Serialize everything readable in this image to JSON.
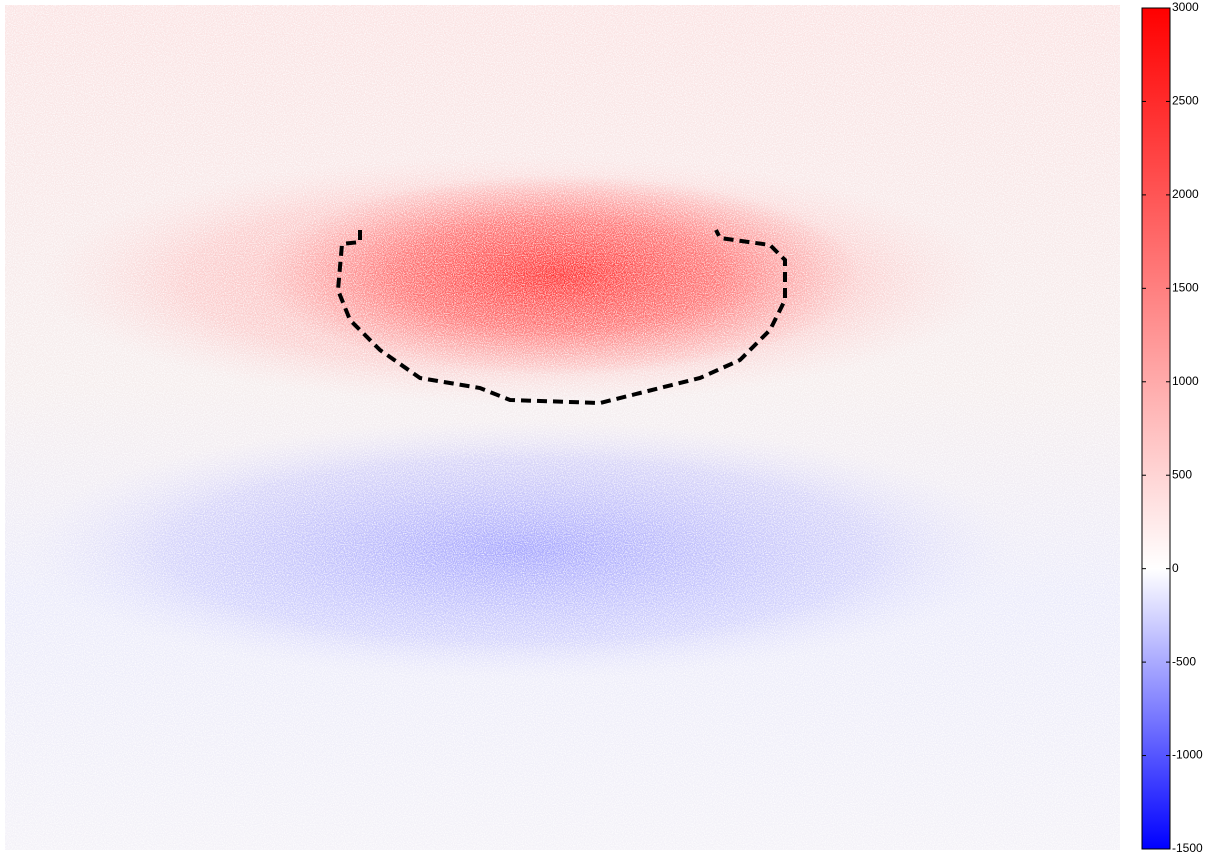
{
  "chart_data": {
    "type": "heatmap",
    "colorbar": {
      "clim": [
        -1500,
        3000
      ],
      "cticks": [
        -1500,
        -1000,
        -500,
        0,
        500,
        1000,
        1500,
        2000,
        2500,
        3000
      ],
      "colors": [
        "#0000ff",
        "#ffffff",
        "#ff0000"
      ]
    }
  }
}
